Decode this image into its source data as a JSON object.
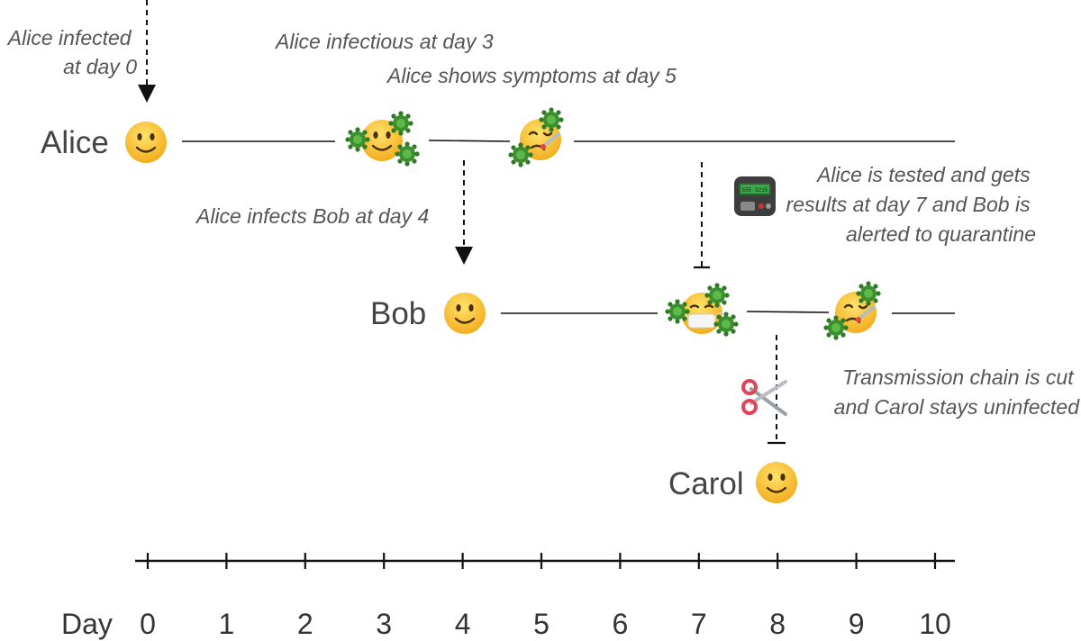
{
  "people": {
    "alice": "Alice",
    "bob": "Bob",
    "carol": "Carol"
  },
  "annotations": {
    "alice_infected": [
      "Alice infected",
      "at day 0"
    ],
    "alice_infectious": "Alice infectious at day 3",
    "alice_symptoms": "Alice shows symptoms at day 5",
    "alice_infects_bob": "Alice infects Bob at day 4",
    "alice_tested": [
      "Alice is tested and gets",
      "results at day 7 and Bob is",
      "alerted to quarantine"
    ],
    "chain_cut": [
      "Transmission chain is cut",
      "and Carol stays uninfected"
    ]
  },
  "pager_display": "555-3215",
  "axis": {
    "label": "Day",
    "ticks": [
      "0",
      "1",
      "2",
      "3",
      "4",
      "5",
      "6",
      "7",
      "8",
      "9",
      "10"
    ]
  },
  "colors": {
    "face": "#f7c531",
    "virus": "#3b8f2e",
    "scissors": "#e0435a"
  },
  "icons": [
    "smiley-face-icon",
    "virus-face-icon",
    "sick-face-icon",
    "masked-face-icon",
    "pager-icon",
    "scissors-icon"
  ]
}
